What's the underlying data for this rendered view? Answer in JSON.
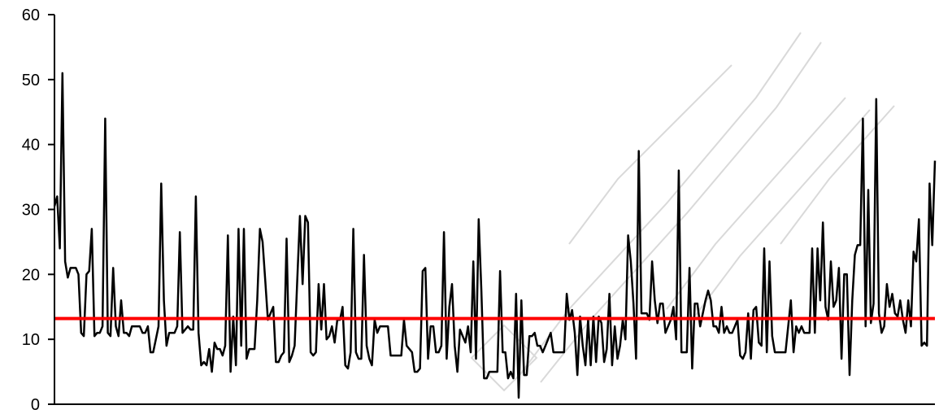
{
  "chart_data": {
    "type": "line",
    "title": "",
    "xlabel": "",
    "ylabel": "",
    "ylim": [
      0,
      60
    ],
    "yticks": [
      0,
      10,
      20,
      30,
      40,
      50,
      60
    ],
    "grid": false,
    "legend": "none",
    "series": [
      {
        "color": "#000000",
        "values": [
          30.5,
          32,
          24,
          51,
          22,
          19.5,
          21,
          21,
          21,
          20,
          11,
          10.5,
          20,
          20.5,
          27,
          10.5,
          11,
          11,
          12,
          44,
          11,
          10.5,
          21,
          12,
          10.5,
          16,
          11,
          11,
          10.5,
          12,
          12,
          12,
          12,
          11,
          11,
          12,
          8,
          8,
          10,
          12,
          34,
          16,
          9,
          11,
          11,
          11,
          12,
          26.5,
          11,
          11.5,
          12,
          11.5,
          11.5,
          32,
          11,
          6,
          6.5,
          6,
          8.5,
          5,
          9.5,
          8.5,
          8.5,
          7.5,
          9,
          26,
          5,
          13.5,
          6,
          27,
          9,
          27,
          7,
          8.5,
          8.5,
          8.5,
          16,
          27,
          25,
          19,
          13,
          14,
          15,
          6.5,
          6.5,
          7.5,
          8,
          25.5,
          6.5,
          7.5,
          9,
          19,
          29,
          18.5,
          29,
          28,
          8,
          7.5,
          8,
          18.5,
          11.5,
          18.5,
          10,
          10.5,
          12,
          9.5,
          13,
          13,
          15,
          6,
          5.5,
          8,
          27,
          8,
          7,
          7,
          23,
          9,
          7,
          6,
          13,
          11,
          12,
          12,
          12,
          12,
          7.5,
          7.5,
          7.5,
          7.5,
          7.5,
          13,
          9,
          8.5,
          8,
          5,
          5,
          5.5,
          20.5,
          21,
          7,
          12,
          12,
          8,
          8,
          9,
          26.5,
          7,
          15,
          18.5,
          9,
          5,
          11.5,
          10.5,
          9.5,
          12,
          8,
          22,
          7,
          28.5,
          17.5,
          4,
          4,
          5,
          5,
          5,
          5,
          20.5,
          8,
          8,
          4,
          5,
          4,
          17,
          1,
          16,
          4.5,
          4.5,
          10.5,
          10.5,
          11,
          9,
          9,
          8,
          9,
          10,
          11,
          8,
          8,
          8,
          8,
          8,
          17,
          13,
          14.5,
          11,
          4.5,
          13.5,
          9,
          6,
          13,
          6,
          13.5,
          6.5,
          13.5,
          12.5,
          6.5,
          8.5,
          17,
          6,
          12,
          7,
          9,
          13,
          10,
          26,
          22,
          15.5,
          7,
          39,
          14,
          14,
          14,
          13,
          22,
          16,
          12.5,
          15.5,
          15.5,
          11,
          12,
          13,
          15,
          10,
          36,
          8,
          8,
          8,
          21,
          5.5,
          15.5,
          15.5,
          12,
          14,
          16,
          17.5,
          16,
          12,
          12,
          11,
          15,
          11,
          12,
          11,
          11,
          12,
          13,
          7.5,
          7,
          8,
          14,
          7,
          14.5,
          15,
          9.5,
          9,
          24,
          8,
          22,
          10.5,
          8,
          8,
          8,
          8,
          8,
          12,
          16,
          8,
          12,
          11,
          12,
          11,
          11,
          11,
          24,
          11,
          24,
          16,
          28,
          15,
          13,
          22,
          15,
          16,
          21,
          7,
          20,
          20,
          4.5,
          16,
          23,
          24.5,
          24.5,
          44,
          12,
          33,
          12.5,
          15.5,
          47,
          14,
          11,
          12,
          18.5,
          15,
          17,
          14,
          13.5,
          16,
          13,
          11,
          16,
          12,
          23.5,
          22,
          28.5,
          9,
          9.5,
          9,
          34,
          24.5,
          37.5
        ]
      },
      {
        "color": "#ff0000",
        "values": [
          13.2,
          13.2
        ]
      }
    ]
  }
}
